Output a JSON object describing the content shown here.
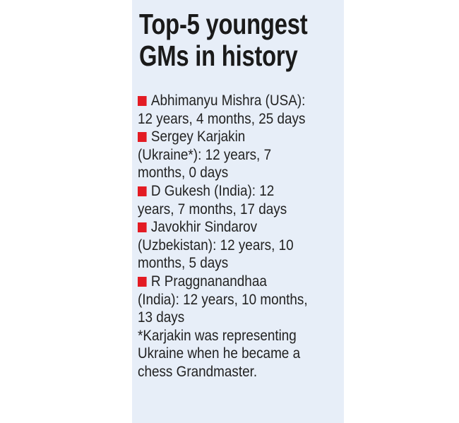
{
  "title": [
    "Top-5 youngest",
    "GMs in history"
  ],
  "bullet_color": "#e31b23",
  "items": [
    {
      "lines": [
        "Abhimanyu Mishra (USA):",
        "12 years, 4 months, 25 days"
      ]
    },
    {
      "lines": [
        "Sergey Karjakin",
        "(Ukraine*): 12 years, 7",
        "months, 0 days"
      ]
    },
    {
      "lines": [
        "D Gukesh (India): 12",
        "years, 7 months, 17 days"
      ]
    },
    {
      "lines": [
        "Javokhir Sindarov",
        "(Uzbekistan): 12 years, 10",
        "months, 5 days"
      ]
    },
    {
      "lines": [
        "R Praggnanandhaa",
        "(India): 12 years, 10 months,",
        "13 days"
      ]
    }
  ],
  "footnote": [
    "*Karjakin was representing",
    "Ukraine when he became a",
    "chess Grandmaster."
  ]
}
